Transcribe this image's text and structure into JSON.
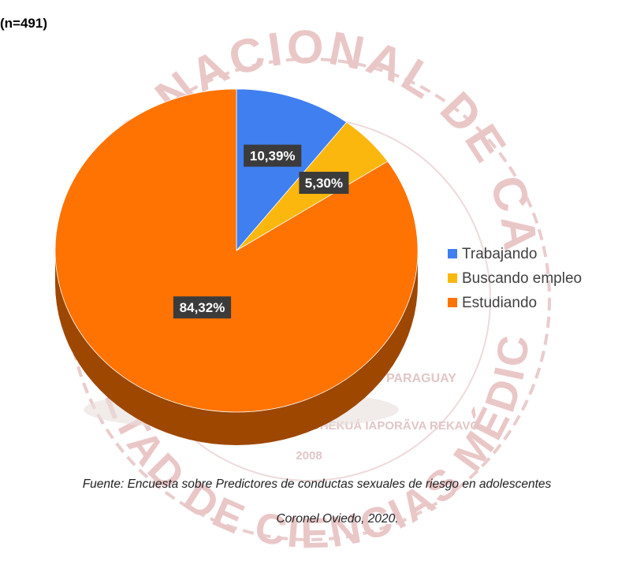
{
  "sample_label": "(n=491)",
  "source": {
    "line1": "Fuente: Encuesta sobre Predictores de conductas sexuales de riesgo en adolescentes",
    "line2": "Coronel Oviedo, 2020."
  },
  "watermark": {
    "top_arc": "UNIVERSIDAD NACIONAL DE CAAGUAZÚ",
    "bottom_arc": "FACULTAD DE CIENCIAS MÉDICAS",
    "center_lines": [
      "PARAGUAY",
      "ÑEMBOHEKUÁ IAPORÃVA REKAVO",
      "2008"
    ],
    "color": "#eac7c7"
  },
  "chart_data": {
    "type": "pie",
    "title": "",
    "style": "3d",
    "legend_position": "right",
    "slices": [
      {
        "label": "Trabajando",
        "value": 10.39,
        "display": "10,39%",
        "color": "#3f7ff0"
      },
      {
        "label": "Buscando empleo",
        "value": 5.3,
        "display": "5,30%",
        "color": "#fbb70e"
      },
      {
        "label": "Estudiando",
        "value": 84.32,
        "display": "84,32%",
        "color": "#fe7302"
      }
    ]
  }
}
